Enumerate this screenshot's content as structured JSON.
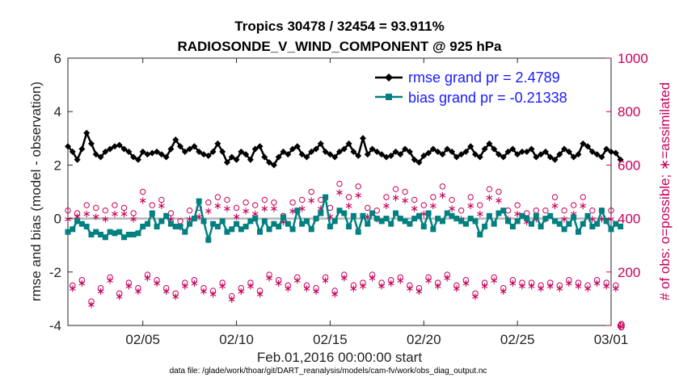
{
  "chart_data": {
    "type": "line",
    "title_line1": "Tropics 30478 / 32454 = 93.911%",
    "title_line2": "RADIOSONDE_V_WIND_COMPONENT @ 925 hPa",
    "xlabel": "Feb.01,2016 00:00:00 start",
    "ylabel_left": "rmse and bias (model - observation)",
    "ylabel_right": "# of obs: o=possible; ∗=assimilated",
    "footnote": "data file: /glade/work/thoar/git/DART_reanalysis/models/cam-fv/work/obs_diag_output.nc",
    "xlim": [
      1,
      30
    ],
    "ylim_left": [
      -4,
      6
    ],
    "ylim_right": [
      0,
      1000
    ],
    "x_ticks": [
      {
        "value": 5,
        "label": "02/05"
      },
      {
        "value": 10,
        "label": "02/10"
      },
      {
        "value": 15,
        "label": "02/15"
      },
      {
        "value": 20,
        "label": "02/20"
      },
      {
        "value": 25,
        "label": "02/25"
      },
      {
        "value": 30,
        "label": "03/01"
      }
    ],
    "y_ticks_left": [
      "-4",
      "-2",
      "0",
      "2",
      "4",
      "6"
    ],
    "y_ticks_right": [
      "0",
      "200",
      "400",
      "600",
      "800",
      "1000"
    ],
    "grid": false,
    "legend_position": "top-right",
    "zero_line": 0,
    "series": [
      {
        "name": "rmse grand pr = 2.4789",
        "color": "#000000",
        "marker": "diamond",
        "axis": "left",
        "x_start": 1.0,
        "x_step": 0.25,
        "values": [
          2.7,
          2.5,
          2.2,
          2.6,
          3.2,
          2.8,
          2.4,
          2.3,
          2.5,
          2.6,
          2.7,
          2.75,
          2.6,
          2.5,
          2.3,
          2.2,
          2.5,
          2.4,
          2.45,
          2.5,
          2.4,
          2.3,
          2.6,
          2.95,
          2.7,
          2.5,
          2.6,
          2.7,
          2.5,
          2.4,
          2.35,
          2.5,
          2.8,
          2.5,
          2.1,
          2.3,
          2.2,
          2.5,
          2.4,
          2.2,
          2.6,
          2.7,
          2.3,
          2.1,
          2.0,
          2.3,
          2.5,
          2.4,
          2.6,
          2.7,
          2.4,
          2.3,
          2.5,
          2.6,
          2.8,
          2.5,
          2.4,
          2.3,
          2.5,
          2.6,
          2.8,
          2.5,
          2.35,
          3.0,
          2.4,
          2.6,
          2.5,
          2.4,
          2.3,
          2.35,
          2.5,
          2.4,
          2.6,
          2.5,
          2.2,
          2.1,
          2.35,
          2.45,
          2.6,
          2.5,
          2.4,
          2.6,
          2.5,
          2.3,
          2.4,
          2.5,
          2.7,
          2.4,
          2.3,
          2.6,
          2.8,
          2.6,
          2.4,
          2.3,
          2.5,
          2.6,
          2.4,
          2.5,
          2.5,
          2.6,
          2.3,
          2.4,
          2.5,
          2.3,
          2.2,
          2.4,
          2.6,
          2.5,
          2.3,
          2.4,
          2.8,
          2.7,
          2.5,
          2.4,
          2.3,
          2.6,
          2.5,
          2.45,
          2.2
        ]
      },
      {
        "name": "bias grand pr = -0.21338",
        "color": "#008080",
        "marker": "square",
        "axis": "left",
        "x_start": 1.0,
        "x_step": 0.25,
        "values": [
          -0.5,
          -0.4,
          -0.1,
          -0.2,
          -0.3,
          -0.6,
          -0.5,
          -0.6,
          -0.7,
          -0.5,
          -0.55,
          -0.5,
          -0.7,
          -0.6,
          -0.6,
          -0.55,
          -0.3,
          -0.2,
          0.2,
          -0.3,
          -0.1,
          0.1,
          -0.2,
          -0.3,
          -0.3,
          -0.5,
          -0.2,
          0.0,
          0.65,
          -0.1,
          -0.8,
          -0.2,
          -0.3,
          -0.1,
          -0.5,
          -0.4,
          -0.2,
          -0.4,
          -0.3,
          -0.1,
          0.0,
          -0.5,
          -0.1,
          -0.4,
          -0.2,
          -0.3,
          0.05,
          -0.2,
          -0.4,
          0.3,
          -0.2,
          -0.1,
          -0.4,
          0.0,
          0.2,
          0.8,
          -0.3,
          -0.1,
          0.3,
          0.2,
          -0.3,
          0.1,
          -0.5,
          0.1,
          -0.2,
          0.2,
          0.0,
          -0.1,
          0.0,
          -0.2,
          0.2,
          0.0,
          -0.1,
          -0.2,
          0.0,
          0.1,
          -0.3,
          0.2,
          -0.4,
          0.0,
          -0.1,
          0.2,
          0.1,
          0.0,
          -0.1,
          -0.2,
          0.0,
          -0.1,
          -0.6,
          -0.3,
          0.1,
          -0.2,
          0.2,
          0.3,
          -0.1,
          -0.3,
          -0.1,
          0.1,
          0.0,
          -0.2,
          0.1,
          -0.3,
          0.0,
          0.1,
          -0.1,
          -0.2,
          -0.4,
          -0.2,
          0.05,
          -0.5,
          -0.2,
          0.1,
          -0.3,
          -0.2,
          0.3,
          -0.1,
          -0.4,
          -0.2,
          -0.3
        ]
      }
    ],
    "obs_counts": {
      "color": "#c8005a",
      "axis": "right",
      "x_start": 1.0,
      "x_step": 0.25,
      "possible": [
        430,
        150,
        420,
        170,
        450,
        90,
        440,
        140,
        430,
        180,
        450,
        120,
        440,
        160,
        420,
        140,
        500,
        190,
        450,
        170,
        470,
        140,
        420,
        120,
        390,
        160,
        430,
        170,
        440,
        140,
        460,
        130,
        480,
        160,
        470,
        110,
        440,
        140,
        460,
        160,
        450,
        130,
        470,
        190,
        460,
        170,
        410,
        150,
        460,
        180,
        470,
        150,
        500,
        140,
        470,
        180,
        440,
        130,
        530,
        190,
        480,
        150,
        520,
        160,
        440,
        190,
        430,
        160,
        480,
        170,
        510,
        180,
        500,
        150,
        470,
        140,
        450,
        180,
        480,
        160,
        520,
        190,
        470,
        150,
        430,
        170,
        480,
        120,
        450,
        160,
        510,
        180,
        500,
        140,
        430,
        170,
        450,
        160,
        420,
        160,
        430,
        150,
        430,
        160,
        480,
        150,
        430,
        170,
        450,
        160,
        480,
        150,
        430,
        170,
        430,
        160,
        430,
        150,
        0
      ],
      "assimilated": [
        400,
        140,
        410,
        160,
        420,
        80,
        410,
        130,
        400,
        170,
        420,
        110,
        420,
        150,
        400,
        130,
        470,
        180,
        420,
        160,
        450,
        130,
        400,
        110,
        370,
        150,
        400,
        160,
        410,
        130,
        430,
        120,
        450,
        150,
        440,
        100,
        410,
        130,
        430,
        150,
        420,
        120,
        440,
        180,
        440,
        160,
        390,
        140,
        430,
        170,
        440,
        140,
        470,
        130,
        440,
        170,
        410,
        120,
        500,
        180,
        450,
        140,
        490,
        150,
        410,
        180,
        400,
        150,
        450,
        160,
        480,
        170,
        470,
        140,
        440,
        130,
        420,
        170,
        450,
        150,
        490,
        180,
        440,
        140,
        400,
        160,
        450,
        110,
        420,
        150,
        480,
        170,
        470,
        130,
        400,
        160,
        420,
        150,
        390,
        150,
        400,
        140,
        400,
        150,
        450,
        140,
        400,
        160,
        420,
        150,
        450,
        140,
        400,
        160,
        400,
        150,
        400,
        140,
        0
      ]
    }
  }
}
